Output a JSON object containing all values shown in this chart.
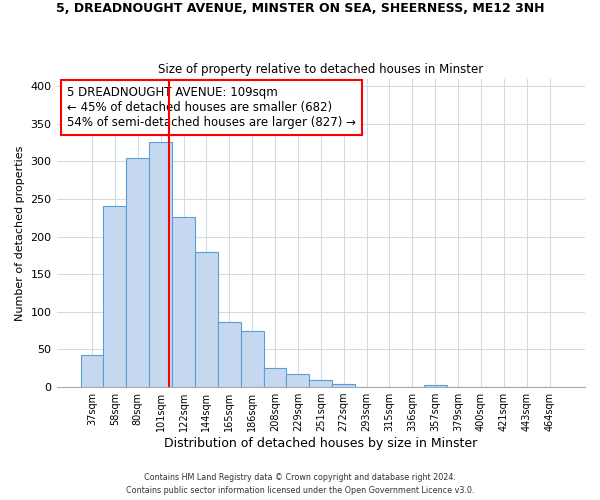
{
  "title": "5, DREADNOUGHT AVENUE, MINSTER ON SEA, SHEERNESS, ME12 3NH",
  "subtitle": "Size of property relative to detached houses in Minster",
  "xlabel": "Distribution of detached houses by size in Minster",
  "ylabel": "Number of detached properties",
  "bar_labels": [
    "37sqm",
    "58sqm",
    "80sqm",
    "101sqm",
    "122sqm",
    "144sqm",
    "165sqm",
    "186sqm",
    "208sqm",
    "229sqm",
    "251sqm",
    "272sqm",
    "293sqm",
    "315sqm",
    "336sqm",
    "357sqm",
    "379sqm",
    "400sqm",
    "421sqm",
    "443sqm",
    "464sqm"
  ],
  "bar_values": [
    42,
    241,
    305,
    326,
    226,
    180,
    87,
    74,
    25,
    17,
    10,
    4,
    0,
    0,
    0,
    3,
    0,
    0,
    0,
    0,
    0
  ],
  "bar_color": "#c5d8f0",
  "bar_edge_color": "#5a9fd4",
  "vline_color": "red",
  "vline_pos": 3.38,
  "annotation_line1": "5 DREADNOUGHT AVENUE: 109sqm",
  "annotation_line2": "← 45% of detached houses are smaller (682)",
  "annotation_line3": "54% of semi-detached houses are larger (827) →",
  "annotation_box_edge": "red",
  "ylim": [
    0,
    410
  ],
  "yticks": [
    0,
    50,
    100,
    150,
    200,
    250,
    300,
    350,
    400
  ],
  "footer_line1": "Contains HM Land Registry data © Crown copyright and database right 2024.",
  "footer_line2": "Contains public sector information licensed under the Open Government Licence v3.0.",
  "bg_color": "#ffffff",
  "grid_color": "#d0dce8",
  "annotation_fontsize": 8.5,
  "title_fontsize": 9,
  "subtitle_fontsize": 8.5,
  "xlabel_fontsize": 9,
  "ylabel_fontsize": 8,
  "xtick_fontsize": 7,
  "ytick_fontsize": 8
}
